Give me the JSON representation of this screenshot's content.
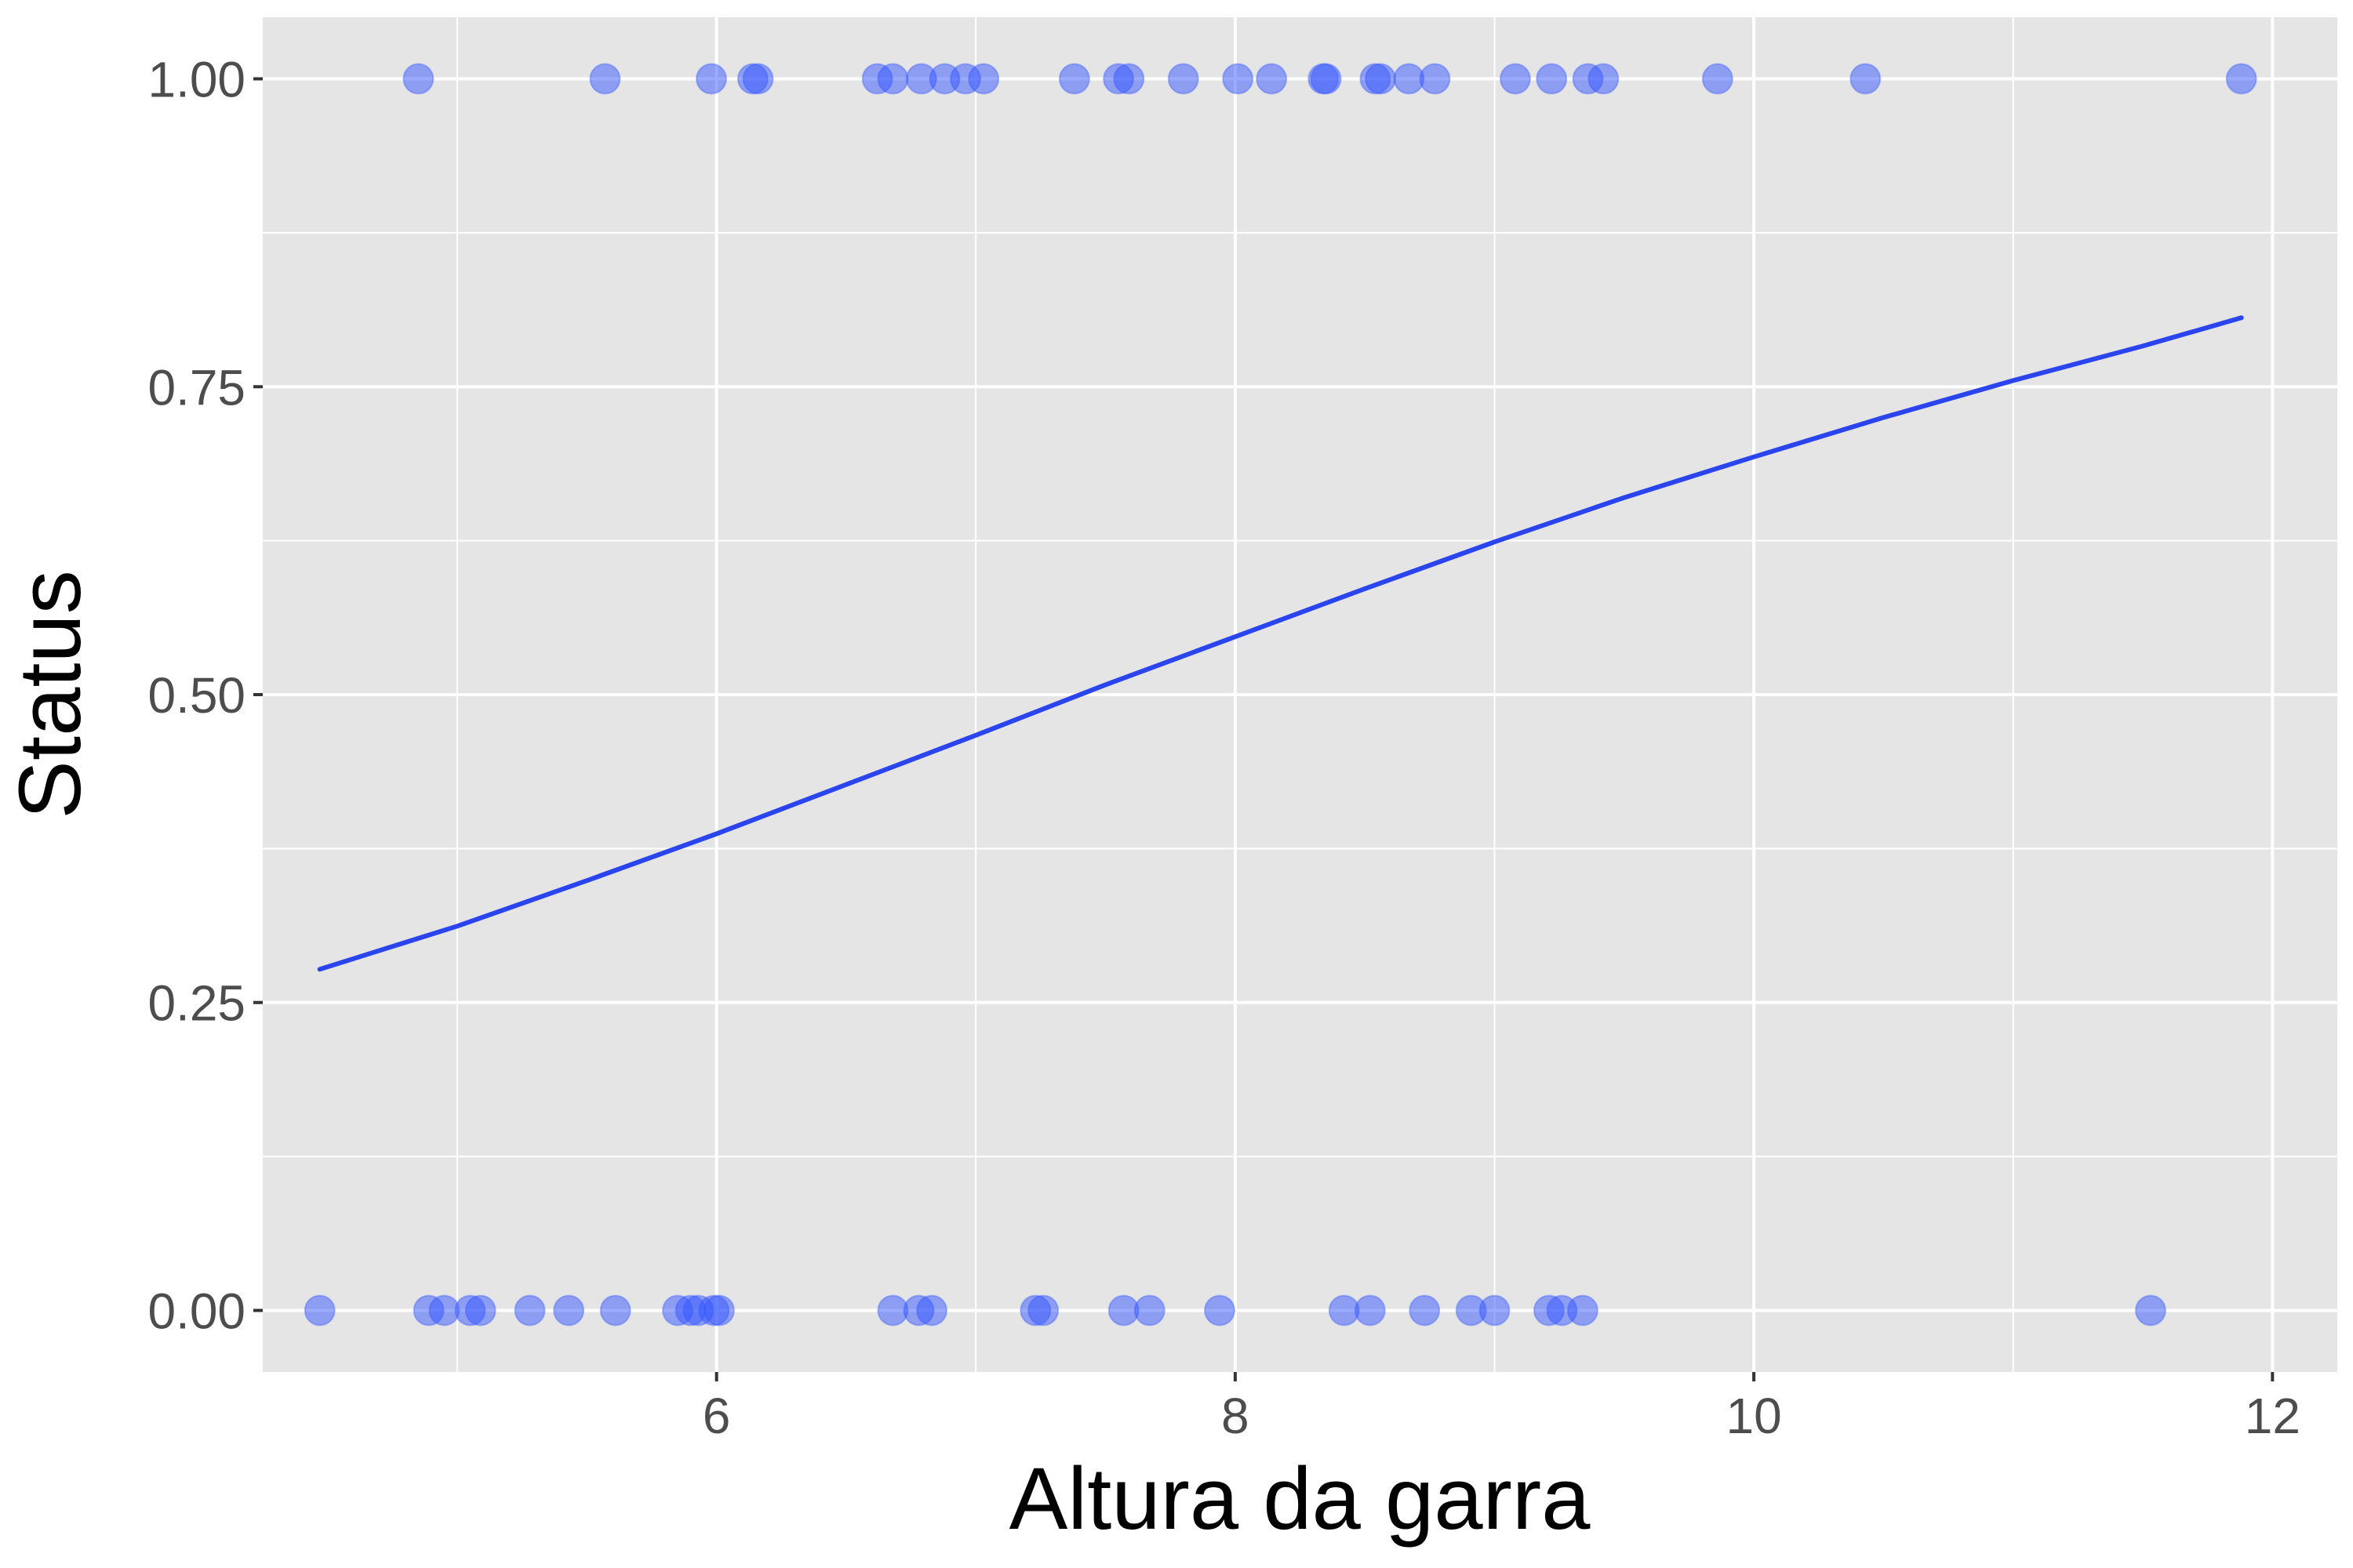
{
  "chart_data": {
    "type": "scatter",
    "title": "",
    "xlabel": "Altura da garra",
    "ylabel": "Status",
    "xlim": [
      4.25,
      12.25
    ],
    "ylim": [
      -0.05,
      1.05
    ],
    "x_ticks": [
      6,
      8,
      10,
      12
    ],
    "x_tick_labels": [
      "6",
      "8",
      "10",
      "12"
    ],
    "y_ticks": [
      0,
      0.25,
      0.5,
      0.75,
      1
    ],
    "y_tick_labels": [
      "0.00",
      "0.25",
      "0.50",
      "0.75",
      "1.00"
    ],
    "x_minor_ticks": [
      5,
      7,
      9,
      11
    ],
    "y_minor_ticks": [
      0.125,
      0.375,
      0.625,
      0.875
    ],
    "grid": true,
    "legend": "none",
    "colors": {
      "panel": "#e5e5e5",
      "grid": "#ffffff",
      "point": "#3355ff",
      "line": "#2a44ee"
    },
    "series": [
      {
        "type": "scatter",
        "points": [
          {
            "x": 4.85,
            "y": 1
          },
          {
            "x": 5.57,
            "y": 1
          },
          {
            "x": 5.98,
            "y": 1
          },
          {
            "x": 6.14,
            "y": 1
          },
          {
            "x": 6.16,
            "y": 1
          },
          {
            "x": 6.62,
            "y": 1
          },
          {
            "x": 6.68,
            "y": 1
          },
          {
            "x": 6.79,
            "y": 1
          },
          {
            "x": 6.88,
            "y": 1
          },
          {
            "x": 6.96,
            "y": 1
          },
          {
            "x": 7.03,
            "y": 1
          },
          {
            "x": 7.38,
            "y": 1
          },
          {
            "x": 7.55,
            "y": 1
          },
          {
            "x": 7.59,
            "y": 1
          },
          {
            "x": 7.8,
            "y": 1
          },
          {
            "x": 8.01,
            "y": 1
          },
          {
            "x": 8.14,
            "y": 1
          },
          {
            "x": 8.34,
            "y": 1
          },
          {
            "x": 8.35,
            "y": 1
          },
          {
            "x": 8.54,
            "y": 1
          },
          {
            "x": 8.56,
            "y": 1
          },
          {
            "x": 8.67,
            "y": 1
          },
          {
            "x": 8.77,
            "y": 1
          },
          {
            "x": 9.08,
            "y": 1
          },
          {
            "x": 9.22,
            "y": 1
          },
          {
            "x": 9.36,
            "y": 1
          },
          {
            "x": 9.42,
            "y": 1
          },
          {
            "x": 9.86,
            "y": 1
          },
          {
            "x": 10.43,
            "y": 1
          },
          {
            "x": 11.88,
            "y": 1
          },
          {
            "x": 4.47,
            "y": 0
          },
          {
            "x": 4.89,
            "y": 0
          },
          {
            "x": 4.95,
            "y": 0
          },
          {
            "x": 5.05,
            "y": 0
          },
          {
            "x": 5.09,
            "y": 0
          },
          {
            "x": 5.28,
            "y": 0
          },
          {
            "x": 5.43,
            "y": 0
          },
          {
            "x": 5.61,
            "y": 0
          },
          {
            "x": 5.85,
            "y": 0
          },
          {
            "x": 5.9,
            "y": 0
          },
          {
            "x": 5.93,
            "y": 0
          },
          {
            "x": 5.99,
            "y": 0
          },
          {
            "x": 6.01,
            "y": 0
          },
          {
            "x": 6.68,
            "y": 0
          },
          {
            "x": 6.78,
            "y": 0
          },
          {
            "x": 6.83,
            "y": 0
          },
          {
            "x": 7.23,
            "y": 0
          },
          {
            "x": 7.26,
            "y": 0
          },
          {
            "x": 7.57,
            "y": 0
          },
          {
            "x": 7.67,
            "y": 0
          },
          {
            "x": 7.94,
            "y": 0
          },
          {
            "x": 8.42,
            "y": 0
          },
          {
            "x": 8.52,
            "y": 0
          },
          {
            "x": 8.73,
            "y": 0
          },
          {
            "x": 8.91,
            "y": 0
          },
          {
            "x": 9.0,
            "y": 0
          },
          {
            "x": 9.21,
            "y": 0
          },
          {
            "x": 9.26,
            "y": 0
          },
          {
            "x": 9.34,
            "y": 0
          },
          {
            "x": 11.53,
            "y": 0
          }
        ]
      },
      {
        "type": "line",
        "x": [
          4.47,
          5.0,
          5.5,
          6.0,
          6.5,
          7.0,
          7.5,
          8.0,
          8.5,
          9.0,
          9.5,
          10.0,
          10.5,
          11.0,
          11.5,
          11.88
        ],
        "y": [
          0.277,
          0.312,
          0.349,
          0.387,
          0.427,
          0.467,
          0.508,
          0.547,
          0.586,
          0.624,
          0.66,
          0.693,
          0.725,
          0.755,
          0.783,
          0.806
        ]
      }
    ]
  }
}
